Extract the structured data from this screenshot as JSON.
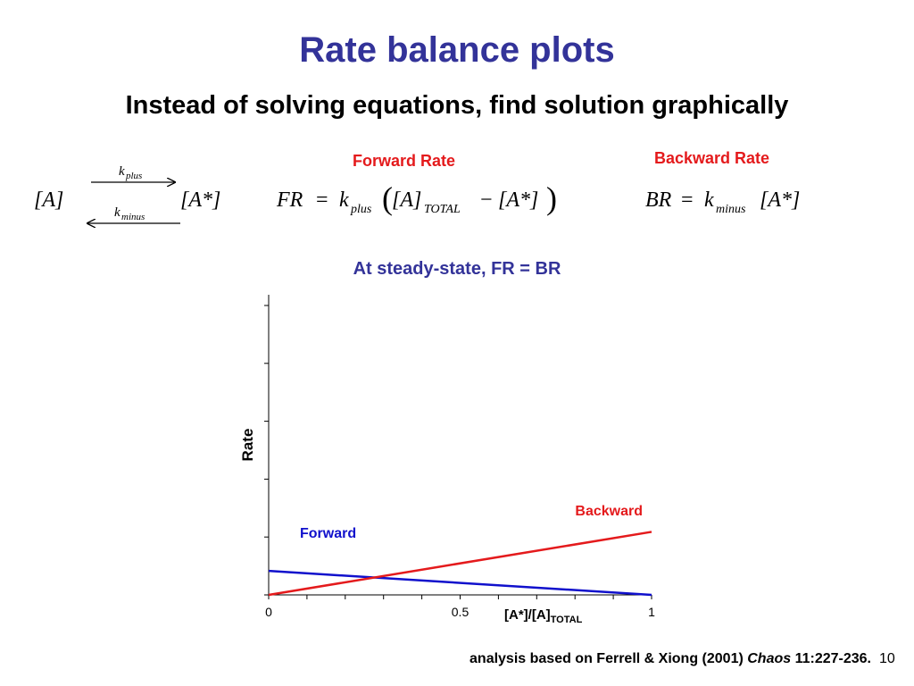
{
  "slide": {
    "title": "Rate balance plots",
    "subtitle": "Instead of solving equations, find solution graphically",
    "steady_state": "At steady-state, FR = BR",
    "page_number": "10"
  },
  "reaction": {
    "reactant": "[A]",
    "product": "[A*]",
    "k_forward": "k",
    "k_forward_sub": "plus",
    "k_backward": "k",
    "k_backward_sub": "minus"
  },
  "forward_rate": {
    "label": "Forward Rate",
    "lhs": "FR",
    "eq": "=",
    "k": "k",
    "k_sub": "plus",
    "total": "[A]",
    "total_sub": "TOTAL",
    "minus": "−",
    "active": "[A*]"
  },
  "backward_rate": {
    "label": "Backward Rate",
    "lhs": "BR",
    "eq": "=",
    "k": "k",
    "k_sub": "minus",
    "active": "[A*]"
  },
  "footer": {
    "text_before": "analysis based on Ferrell & Xiong (2001) ",
    "journal": "Chaos",
    "text_after": " 11:227-236."
  },
  "colors": {
    "title": "#333399",
    "forward": "#1010cc",
    "backward": "#e41a1c"
  },
  "chart_data": {
    "type": "line",
    "xlabel": "[A*]/[A]",
    "xlabel_sub": "TOTAL",
    "ylabel": "Rate",
    "xlim": [
      0,
      1
    ],
    "ylim": [
      0,
      1
    ],
    "x_ticks": [
      0,
      0.5,
      1
    ],
    "x_tick_labels": [
      "0",
      "0.5",
      "1"
    ],
    "grid": false,
    "series": [
      {
        "name": "Forward",
        "color": "#1010cc",
        "x": [
          0,
          1
        ],
        "y": [
          0.08,
          0.0
        ]
      },
      {
        "name": "Backward",
        "color": "#e41a1c",
        "x": [
          0,
          1
        ],
        "y": [
          0.0,
          0.21
        ]
      }
    ]
  }
}
